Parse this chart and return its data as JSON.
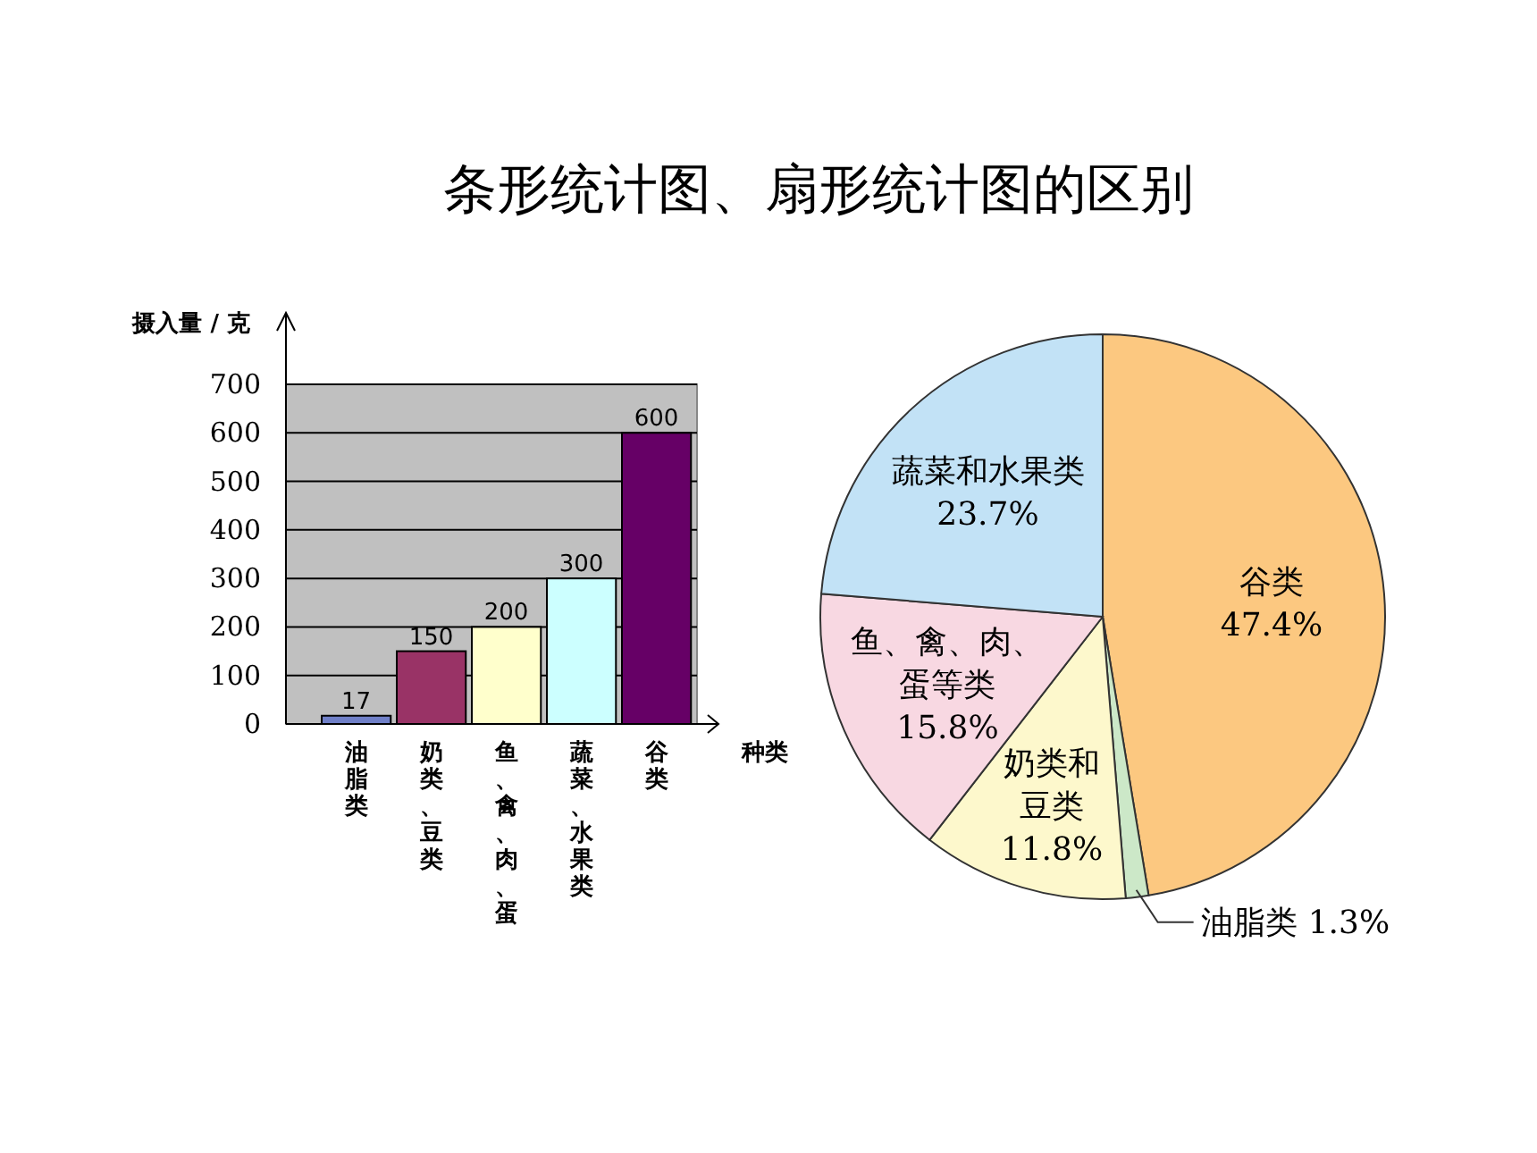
{
  "chart_data": [
    {
      "type": "bar",
      "title": "条形统计图、扇形统计图的区别",
      "ylabel": "摄入量 / 克",
      "xlabel": "种类",
      "categories": [
        "油脂类",
        "奶类、豆类",
        "鱼、禽、肉、蛋",
        "蔬菜、水果类",
        "谷类"
      ],
      "values": [
        17,
        150,
        200,
        300,
        600
      ],
      "colors": [
        "#7080c8",
        "#993366",
        "#ffffcc",
        "#ccffff",
        "#660066"
      ],
      "ylim": [
        0,
        700
      ],
      "yticks": [
        0,
        100,
        200,
        300,
        400,
        500,
        600,
        700
      ],
      "grid": "y",
      "data_labels": true
    },
    {
      "type": "pie",
      "categories": [
        "谷类",
        "油脂类",
        "奶类和豆类",
        "鱼、禽、肉、蛋等类",
        "蔬菜和水果类"
      ],
      "values": [
        47.4,
        1.3,
        11.8,
        15.8,
        23.7
      ],
      "colors": [
        "#fcc880",
        "#cce8c8",
        "#fdf8cc",
        "#f8d8e2",
        "#c2e2f6"
      ],
      "value_labels": [
        "47.4%",
        "1.3%",
        "11.8%",
        "15.8%",
        "23.7%"
      ]
    }
  ]
}
